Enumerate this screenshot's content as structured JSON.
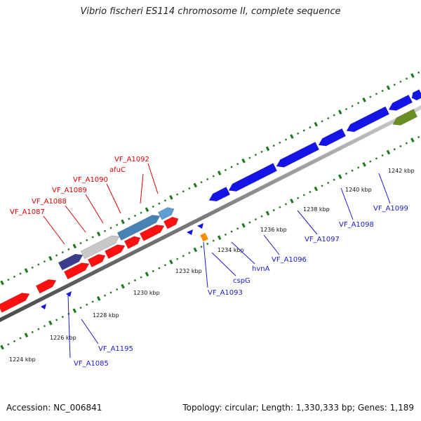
{
  "title": "Vibrio fischeri ES114 chromosome II, complete sequence",
  "footer": {
    "accession": "Accession: NC_006841",
    "summary": "Topology: circular; Length: 1,330,333 bp; Genes: 1,189"
  },
  "colors": {
    "background": "#ffffff",
    "backbone": "#8a8a8a",
    "tick_marks": "#1e7a1e",
    "forward_feature": "#ff1010",
    "reverse_feature": "#1414e6",
    "label_forward": "#e00000",
    "label_reverse": "#1a1ad6",
    "highlight_orange": "#ff8c00",
    "highlight_olive": "#6b8e23",
    "highlight_navy": "#3c3c8c",
    "highlight_grey": "#c8c8c8",
    "highlight_steelblue": "#4682b4"
  },
  "scale_ticks": [
    "1224 kbp",
    "1226 kbp",
    "1228 kbp",
    "1230 kbp",
    "1232 kbp",
    "1234 kbp",
    "1236 kbp",
    "1238 kbp",
    "1240 kbp",
    "1242 kbp"
  ],
  "gene_labels_forward": [
    "VF_A1087",
    "VF_A1088",
    "VF_A1089",
    "VF_A1090",
    "afuC",
    "VF_A1092"
  ],
  "gene_labels_reverse": [
    "VF_A1085",
    "VF_A1195",
    "VF_A1093",
    "cspG",
    "hvnA",
    "VF_A1096",
    "VF_A1097",
    "VF_A1098",
    "VF_A1099"
  ]
}
